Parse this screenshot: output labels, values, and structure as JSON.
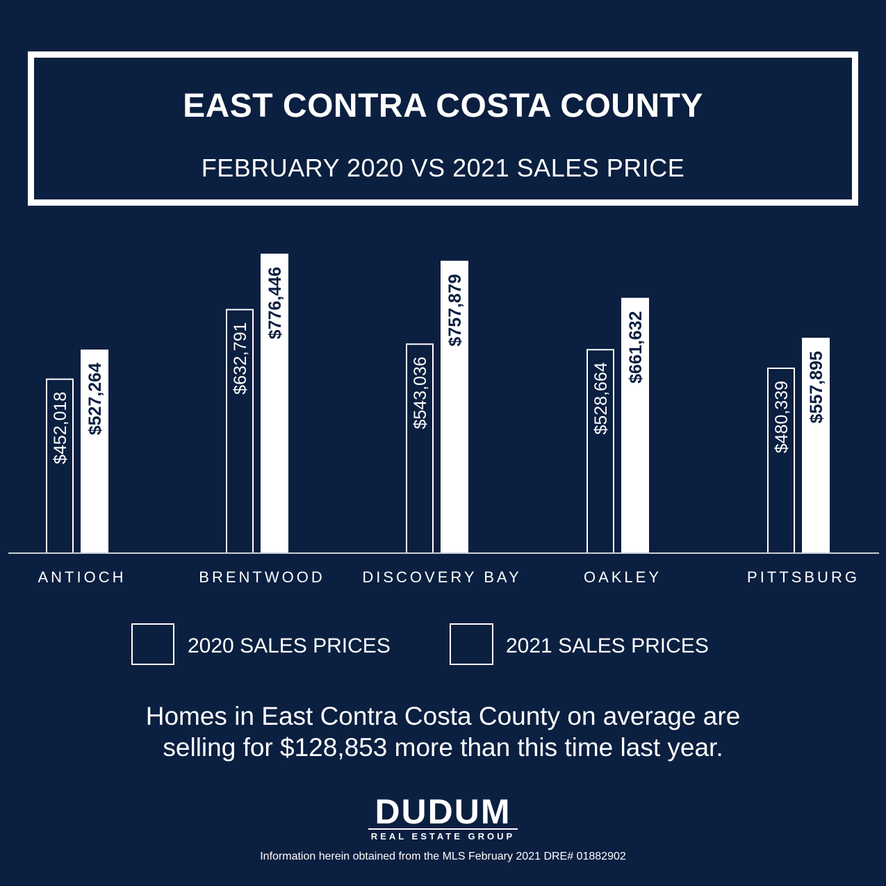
{
  "title": "EAST CONTRA COSTA COUNTY",
  "subtitle": "FEBRUARY 2020 VS 2021 SALES PRICE",
  "chart_data": {
    "type": "bar",
    "categories": [
      "ANTIOCH",
      "BRENTWOOD",
      "DISCOVERY BAY",
      "OAKLEY",
      "PITTSBURG"
    ],
    "series": [
      {
        "name": "2020 SALES PRICES",
        "values": [
          452018,
          632791,
          543036,
          528664,
          480339
        ],
        "labels": [
          "$452,018",
          "$632,791",
          "$543,036",
          "$528,664",
          "$480,339"
        ],
        "color": "#0b1f40"
      },
      {
        "name": "2021 SALES PRICES",
        "values": [
          527264,
          776446,
          757879,
          661632,
          557895
        ],
        "labels": [
          "$527,264",
          "$776,446",
          "$757,879",
          "$661,632",
          "$557,895"
        ],
        "color": "#ffffff"
      }
    ],
    "legend_position": "bottom",
    "grid": false
  },
  "summary": {
    "line1": "Homes in East Contra Costa County on average are",
    "line2": "selling for $128,853 more than this time last year."
  },
  "logo": {
    "name": "DUDUM",
    "tagline": "REAL ESTATE GROUP"
  },
  "footer": "Information herein obtained from the MLS February 2021 DRE# 01882902",
  "colors": {
    "background": "#0b1f40",
    "foreground": "#ffffff"
  }
}
